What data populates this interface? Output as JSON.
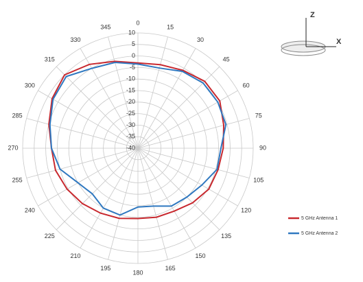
{
  "chart_data": {
    "type": "radar",
    "categories": [
      "0",
      "15",
      "30",
      "45",
      "60",
      "75",
      "90",
      "105",
      "120",
      "135",
      "150",
      "165",
      "180",
      "195",
      "210",
      "225",
      "240",
      "255",
      "270",
      "285",
      "300",
      "315",
      "330",
      "345"
    ],
    "rlim": [
      -40,
      10
    ],
    "rticks": [
      -40,
      -35,
      -30,
      -25,
      -20,
      -15,
      -10,
      -5,
      0,
      5,
      10
    ],
    "grid": true,
    "legend": "lower right",
    "series": [
      {
        "name": "5 GHz Antenna 1",
        "color": "#c8282e",
        "values": [
          -3,
          -2.5,
          -1,
          1,
          1,
          -1.5,
          -3,
          -4,
          -4.5,
          -6.5,
          -8.5,
          -9,
          -9.5,
          -8.5,
          -7.5,
          -6,
          -4.5,
          -3,
          -2.5,
          0,
          3,
          5,
          2,
          -1
        ]
      },
      {
        "name": "5 GHz Antenna 2",
        "color": "#2f78c0",
        "values": [
          -3.5,
          -4,
          -1.5,
          0,
          0,
          -0.5,
          -4,
          -4.5,
          -8,
          -10,
          -11,
          -14,
          -14.5,
          -10,
          -10,
          -12,
          -10,
          -5,
          -2.5,
          -0.5,
          2.5,
          4,
          0,
          -1.5
        ]
      }
    ]
  },
  "axes_icon": {
    "z": "Z",
    "x": "X"
  }
}
